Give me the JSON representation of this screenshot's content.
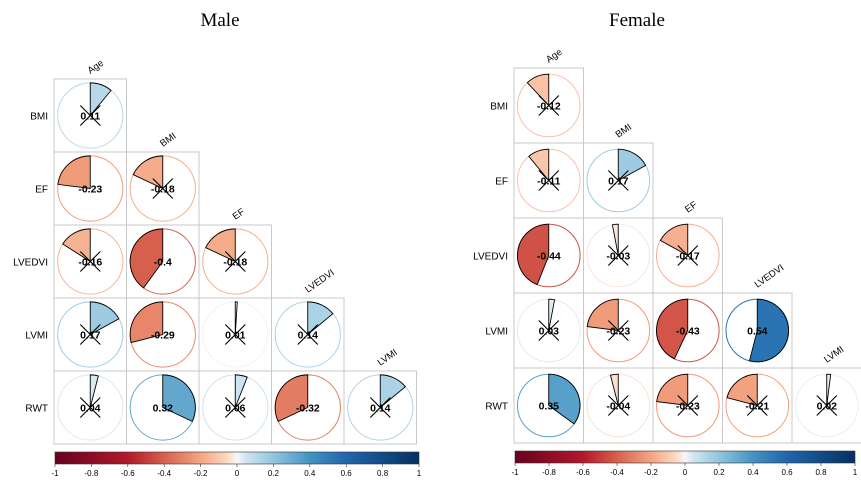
{
  "chart_data": [
    {
      "type": "correlation-pie",
      "title": "Male",
      "variables": [
        "Age",
        "BMI",
        "EF",
        "LVEDVI",
        "LVMI",
        "RWT"
      ],
      "row_labels": [
        "BMI",
        "EF",
        "LVEDVI",
        "LVMI",
        "RWT"
      ],
      "col_labels": [
        "Age",
        "BMI",
        "EF",
        "LVEDVI",
        "LVMI"
      ],
      "matrix": [
        [
          0.11
        ],
        [
          -0.23,
          -0.18
        ],
        [
          -0.16,
          -0.4,
          -0.18
        ],
        [
          0.17,
          -0.29,
          0.01,
          0.14
        ],
        [
          0.04,
          0.32,
          0.06,
          -0.32,
          0.14
        ]
      ],
      "labels": [
        [
          "0.11"
        ],
        [
          "-0.23",
          "-0.18"
        ],
        [
          "-0.16",
          "-0.4",
          "-0.18"
        ],
        [
          "0.17",
          "-0.29",
          "0.01",
          "0.14"
        ],
        [
          "0.04",
          "0.32",
          "0.06",
          "-0.32",
          "0.14"
        ]
      ],
      "crossed": [
        [
          true
        ],
        [
          false,
          true
        ],
        [
          true,
          false,
          true
        ],
        [
          true,
          false,
          true,
          true
        ],
        [
          true,
          false,
          true,
          false,
          true
        ]
      ],
      "colorbar": {
        "range": [
          -1,
          1
        ],
        "ticks": [
          "-1",
          "-0.8",
          "-0.6",
          "-0.4",
          "-0.2",
          "0",
          "0.2",
          "0.4",
          "0.6",
          "0.8",
          "1"
        ]
      }
    },
    {
      "type": "correlation-pie",
      "title": "Female",
      "variables": [
        "Age",
        "BMI",
        "EF",
        "LVEDVI",
        "LVMI",
        "RWT"
      ],
      "row_labels": [
        "BMI",
        "EF",
        "LVEDVI",
        "LVMI",
        "RWT"
      ],
      "col_labels": [
        "Age",
        "BMI",
        "EF",
        "LVEDVI",
        "LVMI"
      ],
      "matrix": [
        [
          -0.12
        ],
        [
          -0.11,
          0.17
        ],
        [
          -0.44,
          -0.03,
          -0.17
        ],
        [
          0.03,
          -0.23,
          -0.43,
          0.54
        ],
        [
          0.35,
          -0.04,
          -0.23,
          -0.21,
          0.02
        ]
      ],
      "labels": [
        [
          "-0.12"
        ],
        [
          "-0.11",
          "0.17"
        ],
        [
          "-0.44",
          "-0.03",
          "-0.17"
        ],
        [
          "0.03",
          "-0.23",
          "-0.43",
          "0.54"
        ],
        [
          "0.35",
          "-0.04",
          "-0.23",
          "-0.21",
          "0.02"
        ]
      ],
      "crossed": [
        [
          true
        ],
        [
          true,
          true
        ],
        [
          false,
          true,
          true
        ],
        [
          true,
          true,
          false,
          false
        ],
        [
          false,
          true,
          true,
          true,
          true
        ]
      ],
      "colorbar": {
        "range": [
          -1,
          1
        ],
        "ticks": [
          "-1",
          "-0.8",
          "-0.6",
          "-0.4",
          "-0.2",
          "0",
          "0.2",
          "0.4",
          "0.6",
          "0.8",
          "1"
        ]
      }
    }
  ],
  "colors": {
    "strong_negative": "#67001f",
    "negative": "#d6604d",
    "light_negative": "#fddbc7",
    "neutral": "#f7f7f7",
    "light_positive": "#d1e5f0",
    "positive": "#4393c3",
    "strong_positive": "#053061"
  }
}
